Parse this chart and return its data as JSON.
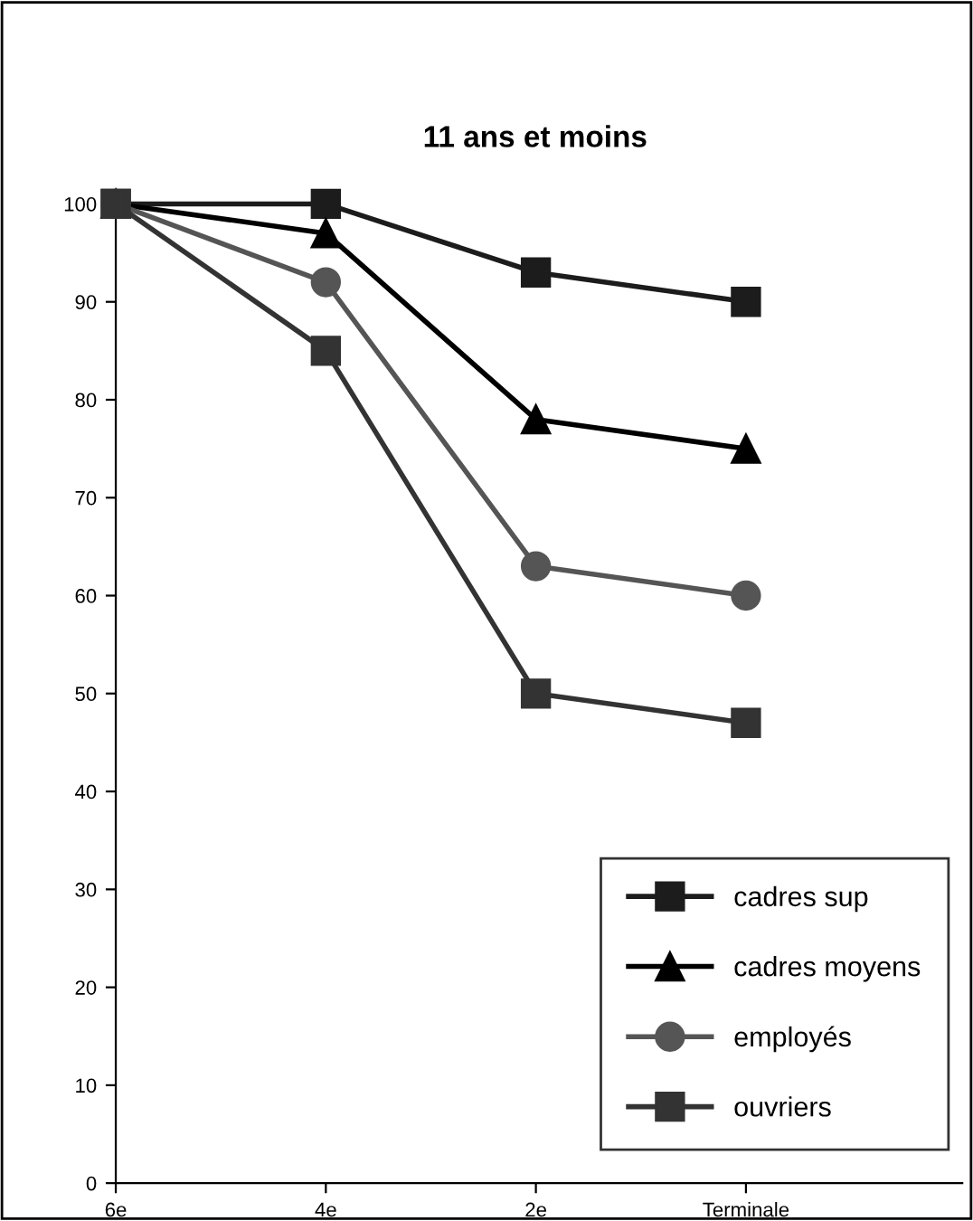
{
  "chart_data": {
    "type": "line",
    "title": "11 ans et moins",
    "categories": [
      "6e",
      "4e",
      "2e",
      "Terminale"
    ],
    "series": [
      {
        "name": "cadres sup",
        "color": "#1c1c1c",
        "marker": "square",
        "values": [
          100,
          100,
          93,
          90
        ]
      },
      {
        "name": "cadres moyens",
        "color": "#000000",
        "marker": "triangle",
        "values": [
          100,
          97,
          78,
          75
        ]
      },
      {
        "name": "employés",
        "color": "#555555",
        "marker": "circle",
        "values": [
          100,
          92,
          63,
          60
        ]
      },
      {
        "name": "ouvriers",
        "color": "#333333",
        "marker": "square",
        "values": [
          100,
          85,
          50,
          47
        ]
      }
    ],
    "ylim": [
      0,
      100
    ],
    "yticks": [
      0,
      10,
      20,
      30,
      40,
      50,
      60,
      70,
      80,
      90,
      100
    ],
    "grid": false,
    "legend": "bottom right",
    "line_style": "solid"
  }
}
